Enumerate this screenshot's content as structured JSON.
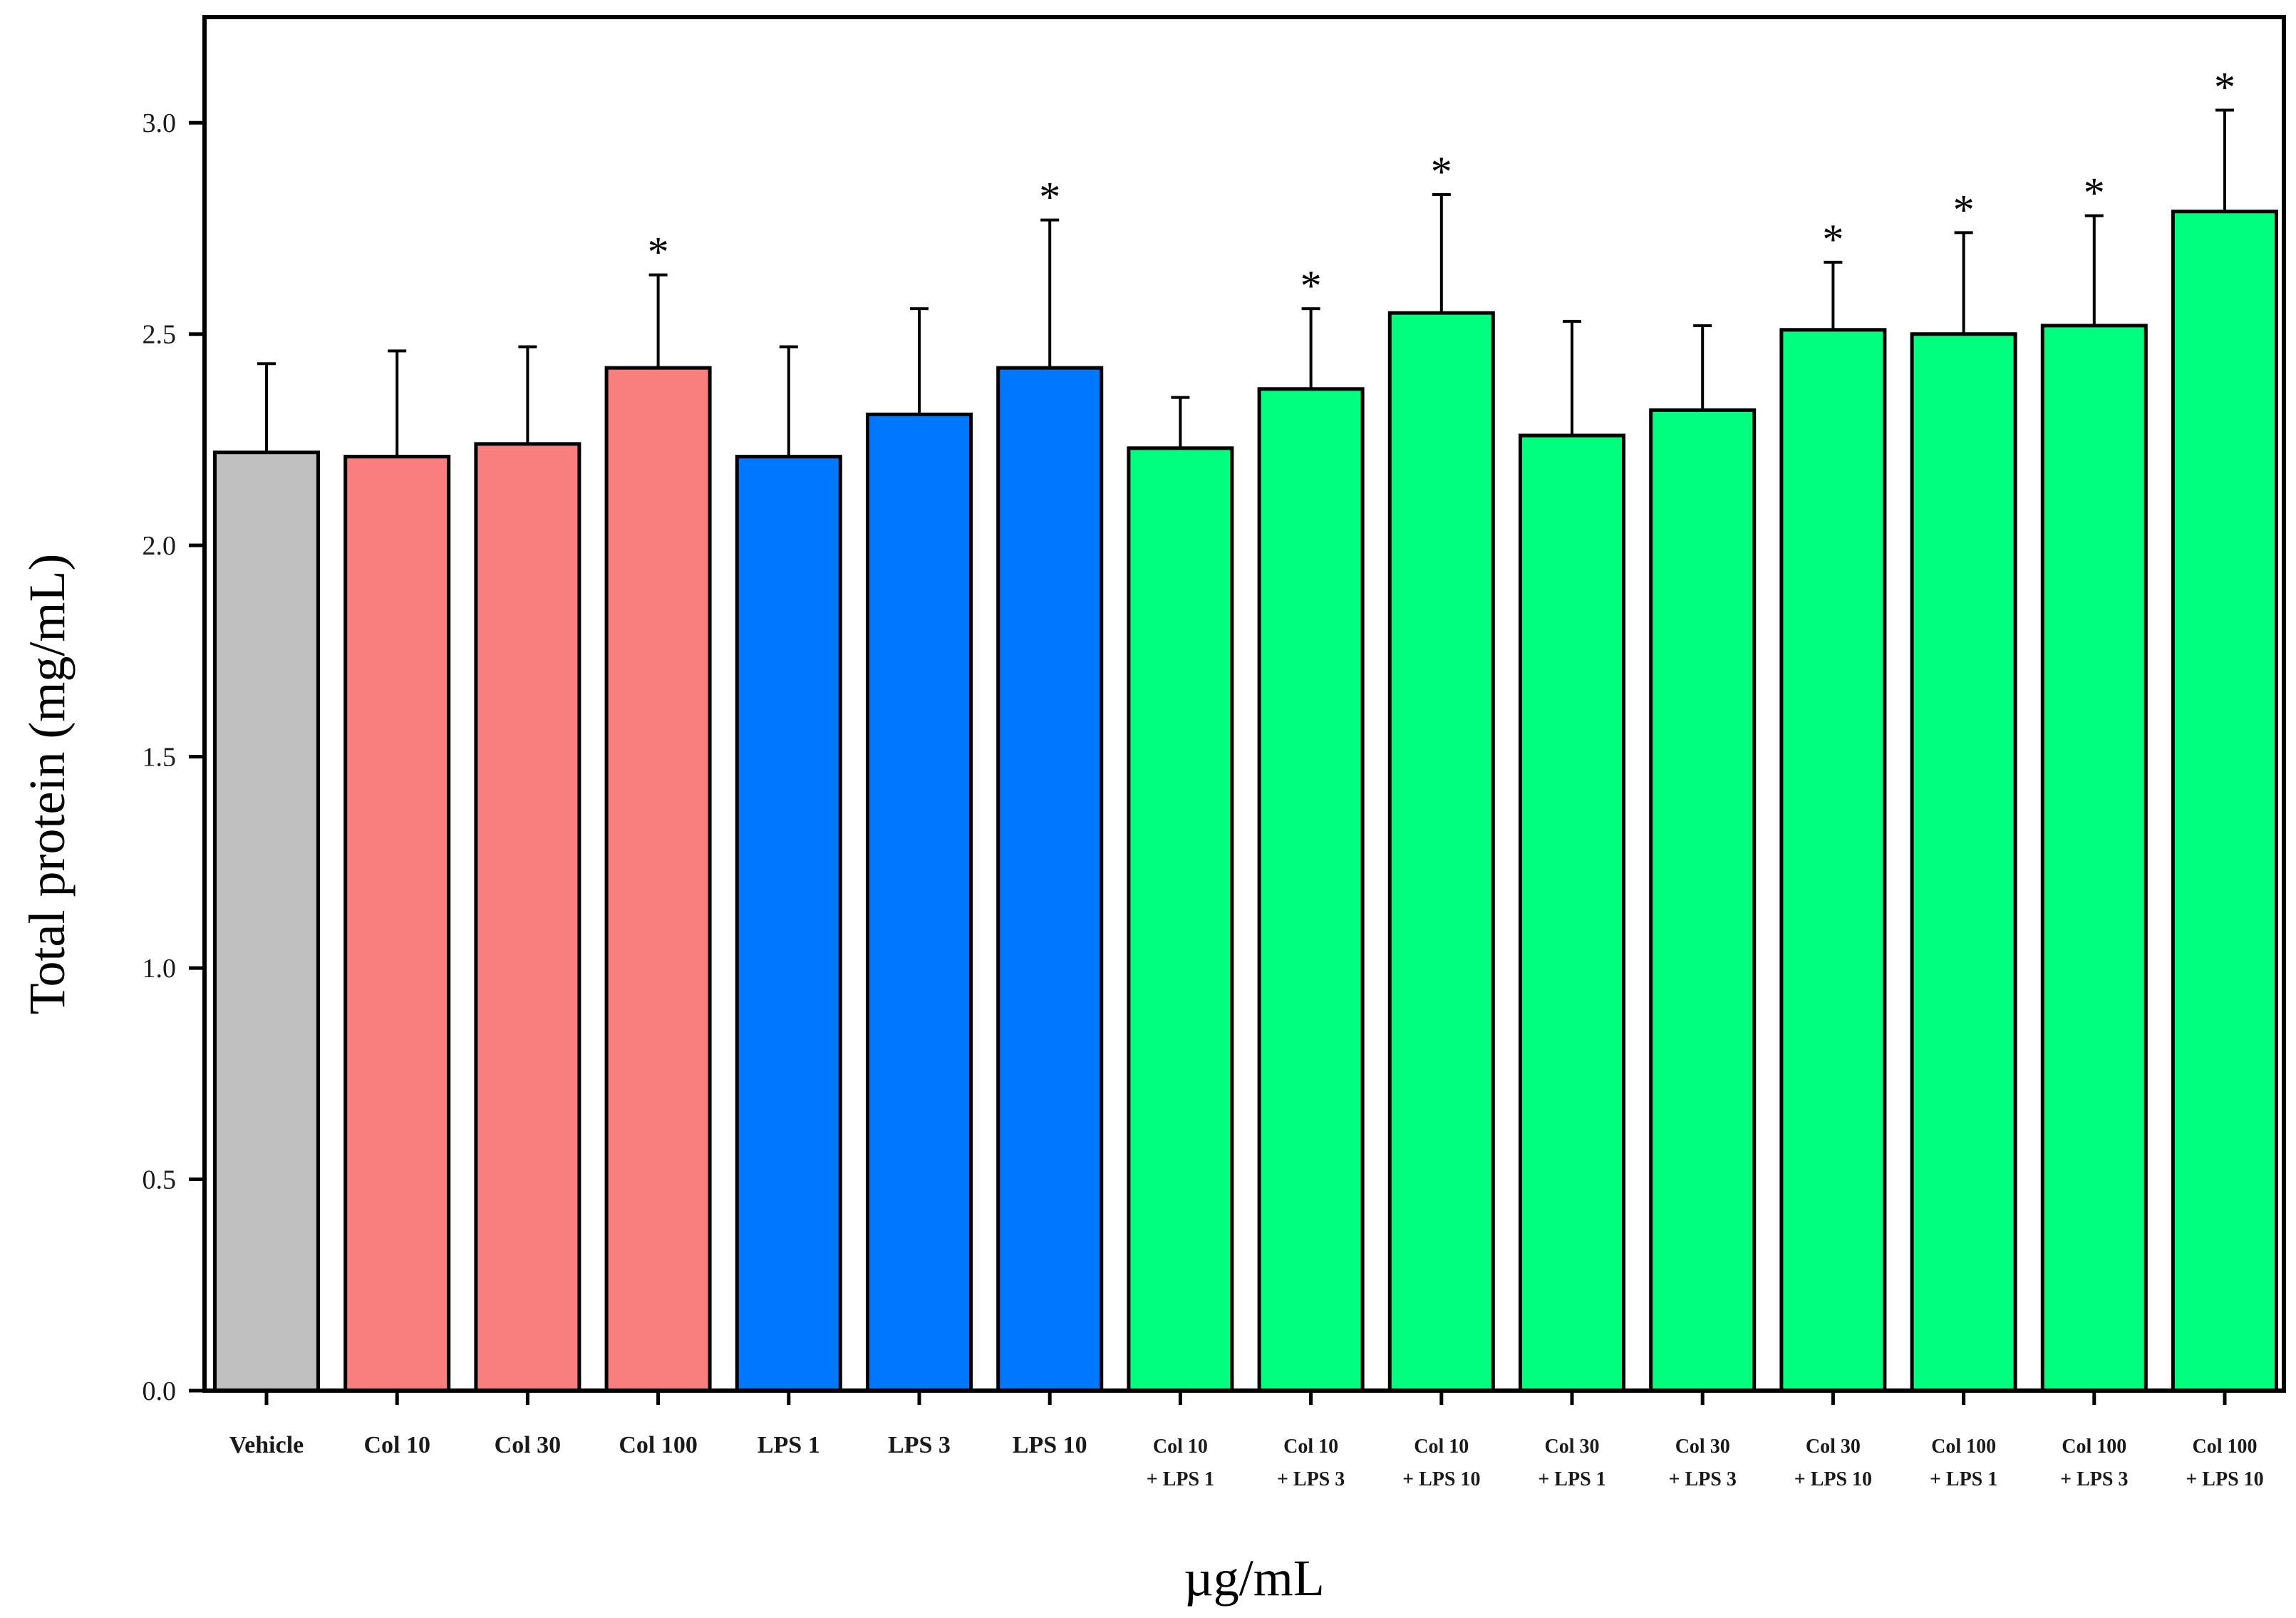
{
  "chart_data": {
    "type": "bar",
    "title": "",
    "xlabel": "µg/mL",
    "ylabel": "Total protein (mg/mL)",
    "ylim": [
      0,
      3.25
    ],
    "yticks": [
      "0.0",
      "0.5",
      "1.0",
      "1.5",
      "2.0",
      "2.5",
      "3.0"
    ],
    "grid": false,
    "colors": {
      "vehicle": "#c0c0c0",
      "col": "#f97f7f",
      "lps": "#0077ff",
      "combo": "#00ff7f",
      "outline": "#000000"
    },
    "categories": [
      {
        "lines": [
          "Vehicle"
        ],
        "group": "vehicle"
      },
      {
        "lines": [
          "Col 10"
        ],
        "group": "col"
      },
      {
        "lines": [
          "Col 30"
        ],
        "group": "col"
      },
      {
        "lines": [
          "Col 100"
        ],
        "group": "col"
      },
      {
        "lines": [
          "LPS 1"
        ],
        "group": "lps"
      },
      {
        "lines": [
          "LPS 3"
        ],
        "group": "lps"
      },
      {
        "lines": [
          "LPS 10"
        ],
        "group": "lps"
      },
      {
        "lines": [
          "Col 10",
          "+ LPS 1"
        ],
        "group": "combo"
      },
      {
        "lines": [
          "Col 10",
          "+ LPS 3"
        ],
        "group": "combo"
      },
      {
        "lines": [
          "Col 10",
          "+ LPS 10"
        ],
        "group": "combo"
      },
      {
        "lines": [
          "Col 30",
          "+ LPS 1"
        ],
        "group": "combo"
      },
      {
        "lines": [
          "Col 30",
          "+ LPS 3"
        ],
        "group": "combo"
      },
      {
        "lines": [
          "Col 30",
          "+ LPS 10"
        ],
        "group": "combo"
      },
      {
        "lines": [
          "Col 100",
          "+ LPS 1"
        ],
        "group": "combo"
      },
      {
        "lines": [
          "Col 100",
          "+ LPS 3"
        ],
        "group": "combo"
      },
      {
        "lines": [
          "Col 100",
          "+ LPS 10"
        ],
        "group": "combo"
      }
    ],
    "values": [
      2.22,
      2.21,
      2.24,
      2.42,
      2.21,
      2.31,
      2.42,
      2.23,
      2.37,
      2.55,
      2.26,
      2.32,
      2.51,
      2.5,
      2.52,
      2.79
    ],
    "errors": [
      0.21,
      0.25,
      0.23,
      0.22,
      0.26,
      0.25,
      0.35,
      0.12,
      0.19,
      0.28,
      0.27,
      0.2,
      0.16,
      0.24,
      0.26,
      0.24
    ],
    "significance": [
      "",
      "",
      "",
      "*",
      "",
      "",
      "*",
      "",
      "*",
      "*",
      "",
      "",
      "*",
      "*",
      "*",
      "*"
    ]
  }
}
